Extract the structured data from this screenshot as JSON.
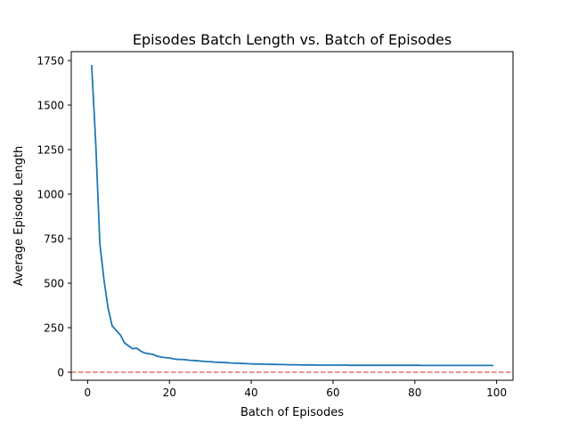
{
  "chart_data": {
    "type": "line",
    "title": "Episodes Batch Length vs. Batch of Episodes",
    "xlabel": "Batch of Episodes",
    "ylabel": "Average Episode Length",
    "xlim": [
      -4,
      104
    ],
    "ylim": [
      -45,
      1800
    ],
    "xticks": [
      0,
      20,
      40,
      60,
      80,
      100
    ],
    "yticks": [
      0,
      250,
      500,
      750,
      1000,
      1250,
      1500,
      1750
    ],
    "grid": false,
    "legend": "none",
    "series": [
      {
        "color": "#1f77b4",
        "x": [
          1,
          2,
          3,
          4,
          5,
          6,
          7,
          8,
          9,
          10,
          11,
          12,
          13,
          14,
          15,
          16,
          17,
          18,
          19,
          20,
          21,
          22,
          23,
          24,
          25,
          26,
          27,
          28,
          29,
          30,
          31,
          32,
          33,
          34,
          35,
          36,
          37,
          38,
          39,
          40,
          41,
          42,
          43,
          44,
          45,
          46,
          47,
          48,
          49,
          50,
          51,
          52,
          53,
          54,
          55,
          56,
          57,
          58,
          59,
          60,
          61,
          62,
          63,
          64,
          65,
          66,
          67,
          68,
          69,
          70,
          71,
          72,
          73,
          74,
          75,
          76,
          77,
          78,
          79,
          80,
          81,
          82,
          83,
          84,
          85,
          86,
          87,
          88,
          89,
          90,
          91,
          92,
          93,
          94,
          95,
          96,
          97,
          98,
          99
        ],
        "y": [
          1720,
          1280,
          720,
          520,
          360,
          260,
          235,
          210,
          165,
          148,
          132,
          135,
          118,
          108,
          104,
          100,
          90,
          85,
          82,
          80,
          75,
          72,
          72,
          70,
          67,
          66,
          64,
          62,
          60,
          59,
          57,
          56,
          55,
          54,
          52,
          51,
          50,
          49,
          48,
          47,
          46,
          46,
          45,
          45,
          44,
          44,
          43,
          43,
          42,
          42,
          42,
          41,
          41,
          41,
          41,
          40,
          40,
          40,
          40,
          40,
          40,
          40,
          40,
          39,
          39,
          39,
          39,
          39,
          39,
          39,
          39,
          39,
          39,
          39,
          39,
          39,
          39,
          39,
          39,
          39,
          39,
          38,
          38,
          38,
          38,
          38,
          38,
          38,
          38,
          38,
          38,
          38,
          38,
          38,
          38,
          38,
          38,
          38,
          38
        ]
      }
    ],
    "reference_line": {
      "y": 0,
      "color": "#e8706a",
      "style": "dashed"
    }
  }
}
